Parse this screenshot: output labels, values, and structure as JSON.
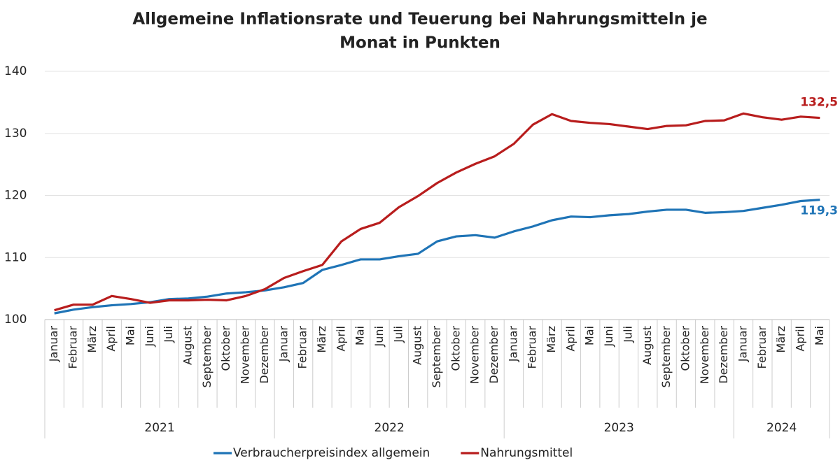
{
  "chart_data": {
    "type": "line",
    "title": [
      "Allgemeine Inflationsrate und Teuerung bei Nahrungsmitteln je",
      "Monat in Punkten"
    ],
    "categories": [
      "Januar",
      "Februar",
      "März",
      "April",
      "Mai",
      "Juni",
      "Juli",
      "August",
      "September",
      "Oktober",
      "November",
      "Dezember",
      "Januar",
      "Februar",
      "März",
      "April",
      "Mai",
      "Juni",
      "Juli",
      "August",
      "September",
      "Oktober",
      "November",
      "Dezember",
      "Januar",
      "Februar",
      "März",
      "April",
      "Mai",
      "Juni",
      "Juli",
      "August",
      "September",
      "Oktober",
      "November",
      "Dezember",
      "Januar",
      "Februar",
      "März",
      "April",
      "Mai"
    ],
    "x_years": [
      "2021",
      "2021",
      "2021",
      "2021",
      "2021",
      "2021",
      "2021",
      "2021",
      "2021",
      "2021",
      "2021",
      "2021",
      "2022",
      "2022",
      "2022",
      "2022",
      "2022",
      "2022",
      "2022",
      "2022",
      "2022",
      "2022",
      "2022",
      "2022",
      "2023",
      "2023",
      "2023",
      "2023",
      "2023",
      "2023",
      "2023",
      "2023",
      "2023",
      "2023",
      "2023",
      "2023",
      "2024",
      "2024",
      "2024",
      "2024",
      "2024"
    ],
    "series": [
      {
        "name": "Verbraucherpreisindex allgemein",
        "color": "#1f74b6",
        "values": [
          101.0,
          101.6,
          102.0,
          102.3,
          102.5,
          102.8,
          103.3,
          103.4,
          103.7,
          104.2,
          104.4,
          104.7,
          105.2,
          105.9,
          108.0,
          108.8,
          109.7,
          109.7,
          110.2,
          110.6,
          112.6,
          113.4,
          113.6,
          113.2,
          114.2,
          115.0,
          116.0,
          116.6,
          116.5,
          116.8,
          117.0,
          117.4,
          117.7,
          117.7,
          117.2,
          117.3,
          117.5,
          118.0,
          118.5,
          119.1,
          119.3
        ],
        "value_labels": [
          null,
          null,
          null,
          null,
          null,
          null,
          null,
          null,
          null,
          null,
          null,
          null,
          null,
          null,
          null,
          null,
          null,
          null,
          null,
          null,
          null,
          null,
          null,
          null,
          null,
          null,
          null,
          null,
          null,
          null,
          null,
          null,
          null,
          null,
          null,
          null,
          null,
          null,
          null,
          null,
          "119,3"
        ]
      },
      {
        "name": "Nahrungsmittel",
        "color": "#b81d1d",
        "values": [
          101.5,
          102.4,
          102.4,
          103.8,
          103.3,
          102.7,
          103.1,
          103.1,
          103.2,
          103.1,
          103.8,
          104.9,
          106.7,
          107.8,
          108.8,
          112.6,
          114.6,
          115.6,
          118.1,
          119.9,
          122.0,
          123.7,
          125.1,
          126.3,
          128.3,
          131.4,
          133.1,
          132.0,
          131.7,
          131.5,
          131.1,
          130.7,
          131.2,
          131.3,
          132.0,
          132.1,
          133.2,
          132.6,
          132.2,
          132.7,
          132.5
        ],
        "value_labels": [
          null,
          null,
          null,
          null,
          null,
          null,
          null,
          null,
          null,
          null,
          null,
          null,
          null,
          null,
          null,
          null,
          null,
          null,
          null,
          null,
          null,
          null,
          null,
          null,
          null,
          null,
          null,
          null,
          null,
          null,
          null,
          null,
          null,
          null,
          null,
          null,
          null,
          null,
          null,
          null,
          "132,5"
        ]
      }
    ],
    "ylim": [
      100,
      140
    ],
    "yticks": [
      100,
      110,
      120,
      130,
      140
    ],
    "grid": true,
    "legend": "bottom"
  }
}
